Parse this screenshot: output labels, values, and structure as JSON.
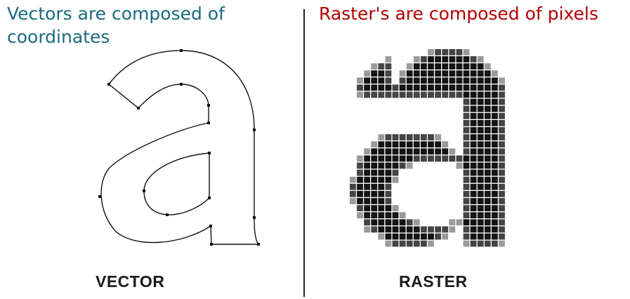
{
  "vector": {
    "heading": "Vectors are composed of coordinates",
    "heading_color": "#1a6a80",
    "caption": "VECTOR"
  },
  "raster": {
    "heading": "Raster's are composed of pixels",
    "heading_color": "#b30000",
    "caption": "RASTER"
  }
}
